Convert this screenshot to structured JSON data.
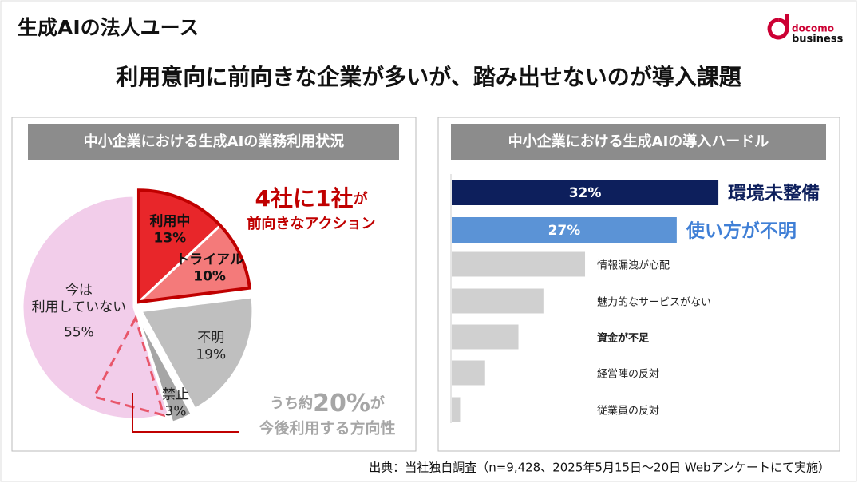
{
  "header": {
    "title": "生成AIの法人ユース",
    "subtitle": "利用意向に前向きな企業が多いが、踏み出せないのが導入課題"
  },
  "logo": {
    "line1": "docomo",
    "line2": "business"
  },
  "chart_data": [
    {
      "type": "pie",
      "title": "中小企業における生成AIの業務利用状況",
      "categories": [
        "利用中",
        "トライアル",
        "不明",
        "禁止",
        "今は\n利用していない"
      ],
      "values": [
        13,
        10,
        19,
        3,
        55
      ],
      "value_labels": [
        "13%",
        "10%",
        "19%",
        "3%",
        "55%"
      ],
      "colors": [
        "#e8262a",
        "#f47a7a",
        "#bfbfbf",
        "#a6a6a6",
        "#f2cdea"
      ],
      "annotations": [
        {
          "parts": [
            "4社に1社",
            "が"
          ],
          "line2": "前向きなアクション",
          "color": "#c00000"
        },
        {
          "parts": [
            "うち約",
            "20%",
            "が"
          ],
          "line2": "今後利用する方向性",
          "color": "#a6a6a6"
        }
      ]
    },
    {
      "type": "bar",
      "orientation": "horizontal",
      "title": "中小企業における生成AIの導入ハードル",
      "categories": [
        "環境未整備",
        "使い方が不明",
        "情報漏洩が心配",
        "魅力的なサービスがない",
        "資金が不足",
        "経営陣の反対",
        "従業員の反対"
      ],
      "values": [
        32,
        27,
        16,
        11,
        8,
        4,
        1
      ],
      "value_labels": [
        "32%",
        "27%",
        null,
        null,
        null,
        null,
        null
      ],
      "colors": [
        "#0d1f5c",
        "#5b93d6",
        "#d0d0d0",
        "#d0d0d0",
        "#d0d0d0",
        "#d0d0d0",
        "#d0d0d0"
      ],
      "label_colors": [
        "#0d1f5c",
        "#3f7fd6",
        "#222222",
        "#222222",
        "#222222",
        "#222222",
        "#222222"
      ],
      "label_styles": [
        "large",
        "large",
        "normal",
        "normal",
        "bold",
        "normal",
        "normal"
      ]
    }
  ],
  "source": "出典：当社独自調査（n=9,428、2025年5月15日～20日 Webアンケートにて実施）"
}
